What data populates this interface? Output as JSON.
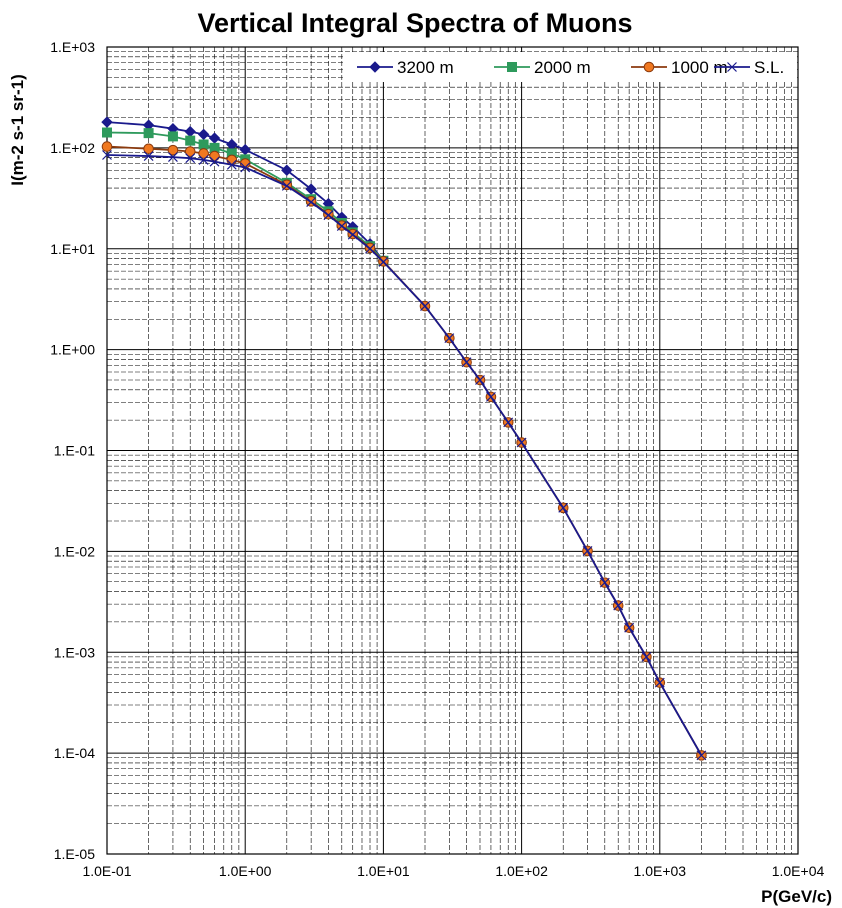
{
  "chart_data": {
    "type": "line",
    "title": "Vertical Integral Spectra of Muons",
    "xlabel": "P(GeV/c)",
    "ylabel": "I(m-2 s-1 sr-1)",
    "x_scale": "log",
    "y_scale": "log",
    "xlim": [
      0.1,
      10000
    ],
    "ylim": [
      1e-05,
      1000
    ],
    "x_tick_labels": [
      "1.0E-01",
      "1.0E+00",
      "1.0E+01",
      "1.0E+02",
      "1.0E+03",
      "1.0E+04"
    ],
    "y_tick_labels": [
      "1.E+03",
      "1.E+02",
      "1.E+01",
      "1.E+00",
      "1.E-01",
      "1.E-02",
      "1.E-03",
      "1.E-04",
      "1.E-05"
    ],
    "grid": true,
    "legend_position": "top",
    "series": [
      {
        "name": "3200 m",
        "color": "#1a1a8c",
        "marker": "diamond",
        "x": [
          0.1,
          0.2,
          0.3,
          0.4,
          0.5,
          0.6,
          0.8,
          1,
          2,
          3,
          4,
          5,
          6,
          8,
          10
        ],
        "y": [
          180,
          168,
          155,
          145,
          136,
          125,
          108,
          96,
          60,
          39,
          28,
          20.5,
          16.5,
          11.2,
          7.6
        ]
      },
      {
        "name": "2000 m",
        "color": "#2e9a5c",
        "marker": "square",
        "x": [
          0.1,
          0.2,
          0.3,
          0.4,
          0.5,
          0.6,
          0.8,
          1,
          2,
          3,
          4,
          5,
          6,
          8,
          10
        ],
        "y": [
          142,
          140,
          130,
          118,
          108,
          100,
          88,
          77,
          45,
          31,
          23.5,
          18,
          14.5,
          10.6,
          7.6
        ]
      },
      {
        "name": "1000 m",
        "color": "#8b3a0e",
        "marker": "circle",
        "x": [
          0.1,
          0.2,
          0.3,
          0.4,
          0.5,
          0.6,
          0.8,
          1,
          2,
          3,
          4,
          5,
          6,
          8,
          10,
          20,
          30,
          40,
          50,
          60,
          80,
          100,
          200,
          300,
          400,
          500,
          600,
          800,
          1000,
          2000
        ],
        "y": [
          103,
          98,
          95,
          92,
          88,
          83,
          76,
          70,
          43,
          29.5,
          22,
          17,
          14,
          10.2,
          7.5,
          2.7,
          1.3,
          0.75,
          0.5,
          0.34,
          0.19,
          0.12,
          0.027,
          0.0101,
          0.0049,
          0.0029,
          0.00175,
          0.0009,
          0.0005,
          9.5e-05
        ]
      },
      {
        "name": "S.L.",
        "color": "#1a1a8c",
        "marker": "x",
        "x": [
          0.1,
          0.2,
          0.3,
          0.4,
          0.5,
          0.6,
          0.8,
          1,
          2,
          3,
          4,
          5,
          6,
          8,
          10,
          20,
          30,
          40,
          50,
          60,
          80,
          100,
          200,
          300,
          400,
          500,
          600,
          800,
          1000,
          2000
        ],
        "y": [
          85,
          83,
          81,
          79,
          76,
          73,
          68,
          64,
          42,
          29,
          21.5,
          16.8,
          13.8,
          10,
          7.4,
          2.7,
          1.3,
          0.75,
          0.5,
          0.34,
          0.19,
          0.12,
          0.027,
          0.0101,
          0.0049,
          0.0029,
          0.00175,
          0.0009,
          0.0005,
          9.5e-05
        ]
      }
    ]
  }
}
